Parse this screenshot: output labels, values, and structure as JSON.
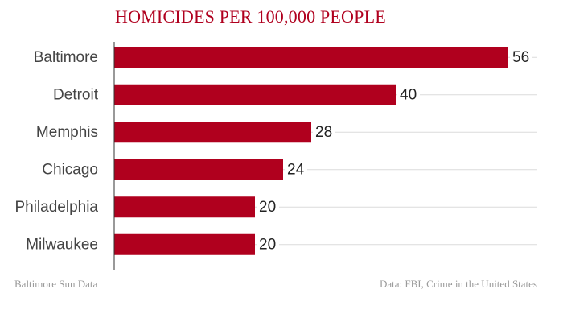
{
  "chart_data": {
    "type": "bar",
    "orientation": "horizontal",
    "title": "HOMICIDES PER 100,000 PEOPLE",
    "categories": [
      "Baltimore",
      "Detroit",
      "Memphis",
      "Chicago",
      "Philadelphia",
      "Milwaukee"
    ],
    "values": [
      56,
      40,
      28,
      24,
      20,
      20
    ],
    "xlim": [
      0,
      60
    ],
    "grid": true,
    "bar_color": "#b0001e",
    "title_color": "#b0001e"
  },
  "footer": {
    "left": "Baltimore Sun Data",
    "right": "Data: FBI, Crime in the United States"
  }
}
